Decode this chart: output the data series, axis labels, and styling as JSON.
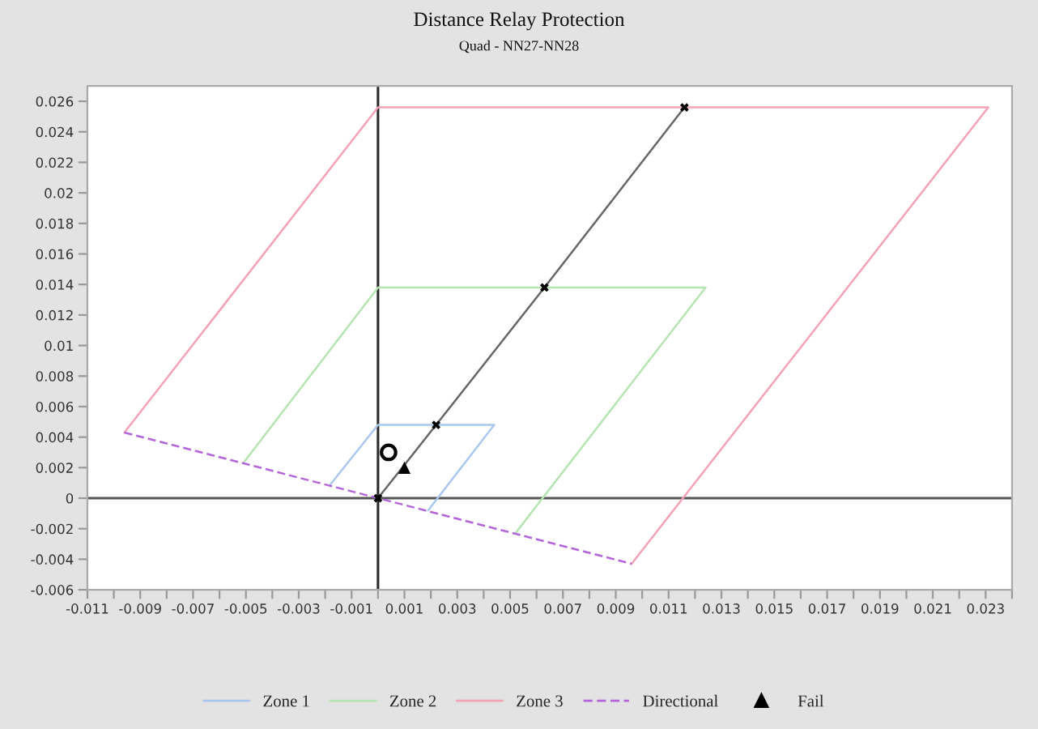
{
  "chart_data": {
    "type": "line",
    "title": "Distance Relay Protection",
    "subtitle": "Quad - NN27-NN28",
    "xlim": [
      -0.011,
      0.024
    ],
    "ylim": [
      -0.006,
      0.027
    ],
    "xticks": [
      -0.011,
      {
        "value": -0.01,
        "label": null
      },
      -0.009,
      {
        "value": -0.008,
        "label": null
      },
      -0.007,
      {
        "value": -0.006,
        "label": null
      },
      -0.005,
      {
        "value": -0.004,
        "label": null
      },
      -0.003,
      {
        "value": -0.002,
        "label": null
      },
      -0.001,
      {
        "value": 0,
        "label": null
      },
      0.001,
      {
        "value": 0.002,
        "label": null
      },
      0.003,
      {
        "value": 0.004,
        "label": null
      },
      0.005,
      {
        "value": 0.006,
        "label": null
      },
      0.007,
      {
        "value": 0.008,
        "label": null
      },
      0.009,
      {
        "value": 0.01,
        "label": null
      },
      0.011,
      {
        "value": 0.012,
        "label": null
      },
      0.013,
      {
        "value": 0.014,
        "label": null
      },
      0.015,
      {
        "value": 0.016,
        "label": null
      },
      0.017,
      {
        "value": 0.018,
        "label": null
      },
      0.019,
      {
        "value": 0.02,
        "label": null
      },
      0.021,
      {
        "value": 0.022,
        "label": null
      },
      0.023,
      {
        "value": 0.024,
        "label": null
      }
    ],
    "yticks": [
      -0.006,
      -0.004,
      -0.002,
      0,
      0.002,
      0.004,
      0.006,
      0.008,
      0.01,
      0.012,
      0.014,
      0.016,
      0.018,
      0.02,
      0.022,
      0.024,
      0.026
    ],
    "ref_lines": [
      {
        "axis": "x",
        "value": 0,
        "color": "#2a2a2a"
      },
      {
        "axis": "y",
        "value": 0,
        "color": "#555555"
      }
    ],
    "legend": "bottom",
    "series": [
      {
        "name": "Zone 1",
        "color": "#a9c8ef",
        "x": [
          -0.0018,
          0,
          0.0044,
          0.0019
        ],
        "values": [
          0.0009,
          0.0048,
          0.0048,
          -0.0008
        ]
      },
      {
        "name": "Zone 2",
        "color": "#b6e5b2",
        "x": [
          -0.0051,
          0,
          0.0124,
          0.0052
        ],
        "values": [
          0.0023,
          0.0138,
          0.0138,
          -0.0023
        ]
      },
      {
        "name": "Zone 3",
        "color": "#f3a3b5",
        "x": [
          -0.0096,
          0,
          0.0231,
          0.0096
        ],
        "values": [
          0.0043,
          0.0256,
          0.0256,
          -0.0043
        ]
      },
      {
        "name": "Directional",
        "color": "#b565dc",
        "line_style": "dashed",
        "x": [
          -0.0096,
          0.0096
        ],
        "values": [
          0.0043,
          -0.0043
        ]
      },
      {
        "color": "#666666",
        "x": [
          0,
          0.0022,
          0.0063,
          0.0116
        ],
        "values": [
          0,
          0.0048,
          0.0138,
          0.0256
        ]
      },
      {
        "type": "scatter",
        "color": "#000000",
        "marker": "cross",
        "x": [
          0,
          0.0022,
          0.0063,
          0.0116
        ],
        "values": [
          0,
          0.0048,
          0.0138,
          0.0256
        ]
      },
      {
        "name": "Fail",
        "type": "scatter",
        "color": "#000000",
        "marker": "triangle",
        "x": [
          0.001
        ],
        "values": [
          0.002
        ]
      },
      {
        "type": "scatter",
        "color": "#000000",
        "marker": "circle",
        "x": [
          0.0004
        ],
        "values": [
          0.003
        ]
      }
    ]
  }
}
